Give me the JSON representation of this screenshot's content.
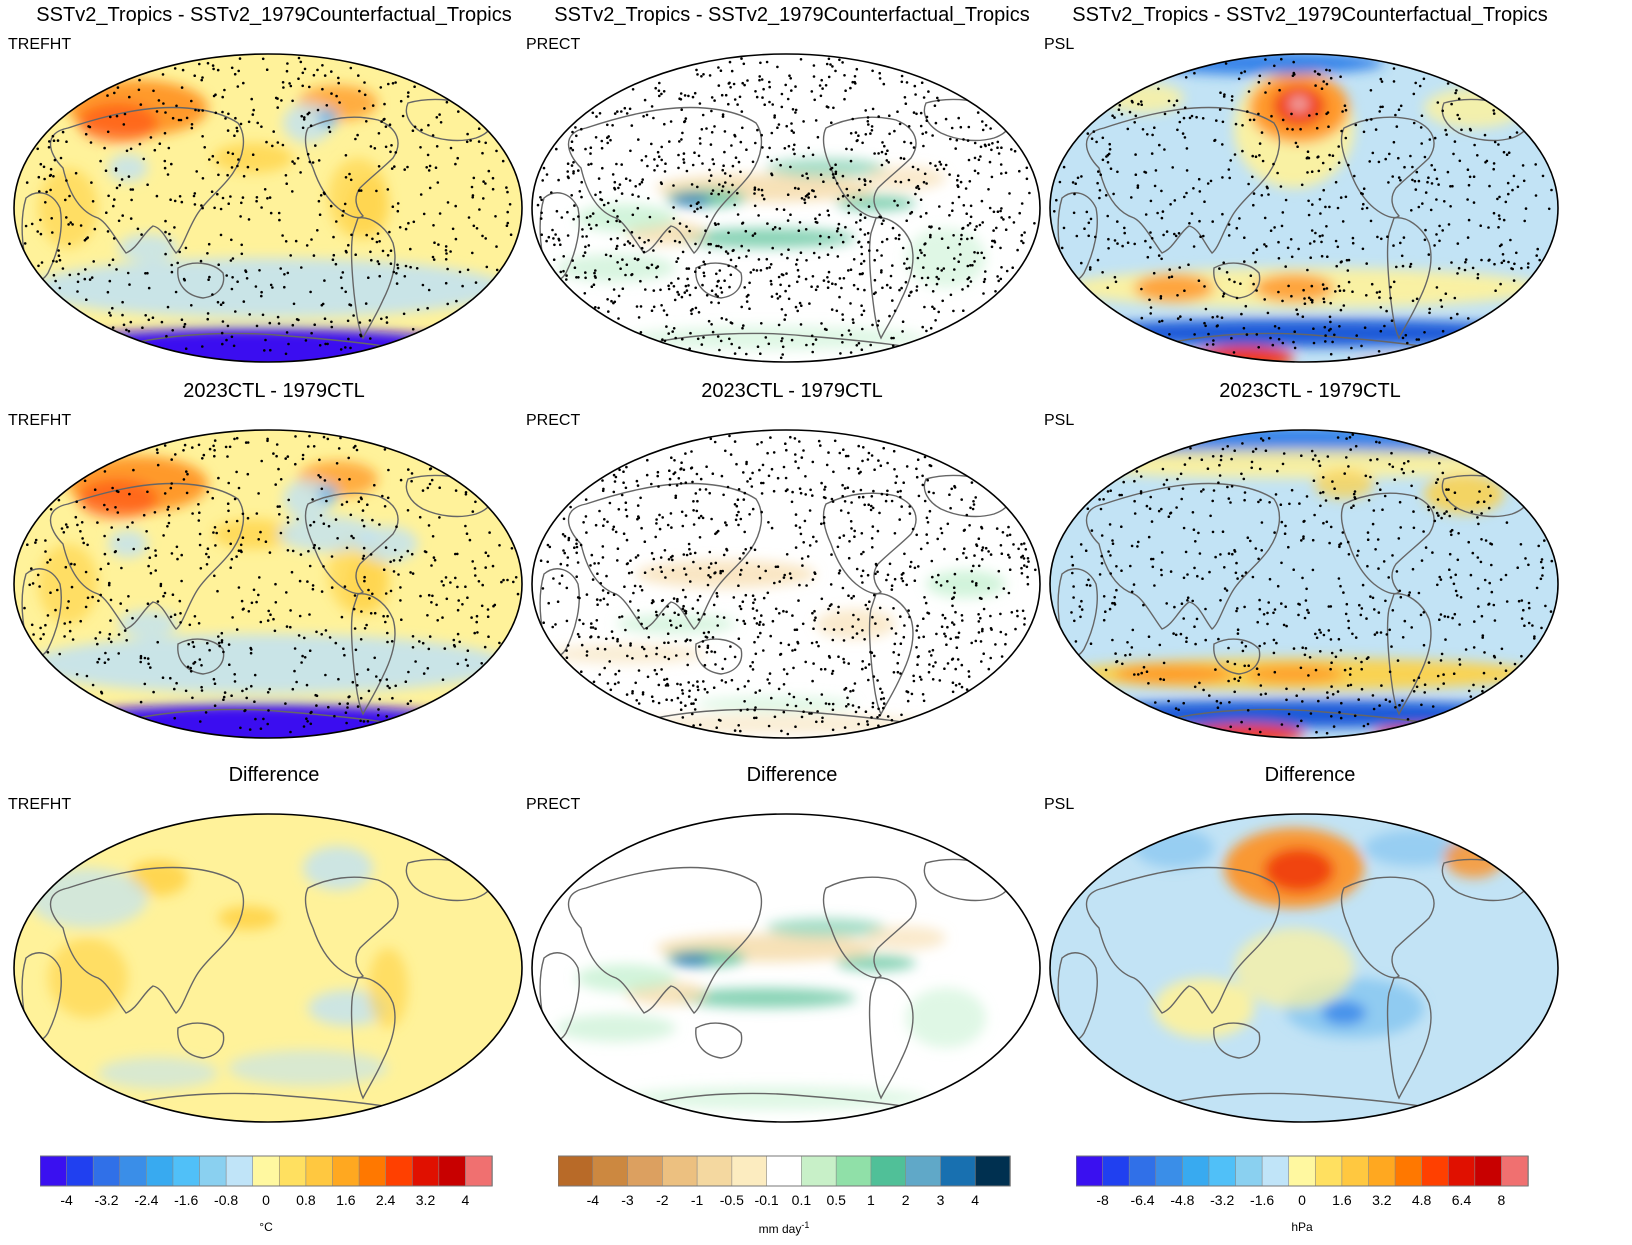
{
  "panels": [
    {
      "title": "SSTv2_Tropics - SSTv2_1979Counterfactual_Tropics",
      "var": "TREFHT",
      "scheme": "temp",
      "kind": "top"
    },
    {
      "title": "SSTv2_Tropics - SSTv2_1979Counterfactual_Tropics",
      "var": "PRECT",
      "scheme": "prec",
      "kind": "top"
    },
    {
      "title": "SSTv2_Tropics - SSTv2_1979Counterfactual_Tropics",
      "var": "PSL",
      "scheme": "psl",
      "kind": "top"
    },
    {
      "title": "2023CTL - 1979CTL",
      "var": "TREFHT",
      "scheme": "temp",
      "kind": "mid"
    },
    {
      "title": "2023CTL - 1979CTL",
      "var": "PRECT",
      "scheme": "prec",
      "kind": "mid"
    },
    {
      "title": "2023CTL - 1979CTL",
      "var": "PSL",
      "scheme": "psl",
      "kind": "mid"
    },
    {
      "title": "Difference",
      "var": "TREFHT",
      "scheme": "temp",
      "kind": "diff"
    },
    {
      "title": "Difference",
      "var": "PRECT",
      "scheme": "prec",
      "kind": "diff"
    },
    {
      "title": "Difference",
      "var": "PSL",
      "scheme": "psl",
      "kind": "diff"
    }
  ],
  "colorbars": [
    {
      "name": "temperature",
      "unit": "°C",
      "ticks": [
        "-4",
        "-3.2",
        "-2.4",
        "-1.6",
        "-0.8",
        "0",
        "0.8",
        "1.6",
        "2.4",
        "3.2",
        "4"
      ],
      "colors": [
        "#3a10f0",
        "#2040f0",
        "#3070e8",
        "#3a8ee8",
        "#38aaf0",
        "#50c0f8",
        "#8ad0f0",
        "#c0e4f8",
        "#fff8a0",
        "#ffe060",
        "#ffc840",
        "#ffa820",
        "#ff7800",
        "#ff4000",
        "#e01000",
        "#c80000",
        "#f07070"
      ]
    },
    {
      "name": "precipitation",
      "unit": "mm day",
      "ticks": [
        "-4",
        "-3",
        "-2",
        "-1",
        "-0.5",
        "-0.1",
        "0.1",
        "0.5",
        "1",
        "2",
        "3",
        "4"
      ],
      "colors": [
        "#b86a28",
        "#cc8840",
        "#dca060",
        "#ecc080",
        "#f4d8a0",
        "#fcecc0",
        "#ffffff",
        "#c8f0c8",
        "#90e0a8",
        "#50c098",
        "#60a8c8",
        "#1870b0",
        "#003050"
      ]
    },
    {
      "name": "sea-level-pressure",
      "unit": "hPa",
      "ticks": [
        "-8",
        "-6.4",
        "-4.8",
        "-3.2",
        "-1.6",
        "0",
        "1.6",
        "3.2",
        "4.8",
        "6.4",
        "8"
      ],
      "colors": [
        "#3a10f0",
        "#2040f0",
        "#3070e8",
        "#3a8ee8",
        "#38aaf0",
        "#50c0f8",
        "#8ad0f0",
        "#c0e4f8",
        "#fff8a0",
        "#ffe060",
        "#ffc840",
        "#ffa820",
        "#ff7800",
        "#ff4000",
        "#e01000",
        "#c80000",
        "#f07070"
      ]
    }
  ],
  "palettes": {
    "temp": {
      "base": "#fff29a",
      "warm": "#ffd040",
      "hot": "#ff9020",
      "vhot": "#ff4a10",
      "cool": "#c0e2f4",
      "cold": "#6ab2ea",
      "vcold": "#3a10f0"
    },
    "prec": {
      "base": "#ffffff",
      "dry": "#f6dcaa",
      "vdry": "#d89a60",
      "wet": "#bfefcc",
      "vwet": "#6cc8a4",
      "xwet": "#2a7ab8"
    },
    "psl": {
      "base": "#c2e3f5",
      "pos": "#fff29a",
      "pos2": "#ffd040",
      "pos3": "#ff9020",
      "pos4": "#f03a10",
      "pos5": "#f0a0a0",
      "neg": "#7ac0f0",
      "neg2": "#2a7ae8",
      "neg3": "#1f5ad8"
    }
  }
}
